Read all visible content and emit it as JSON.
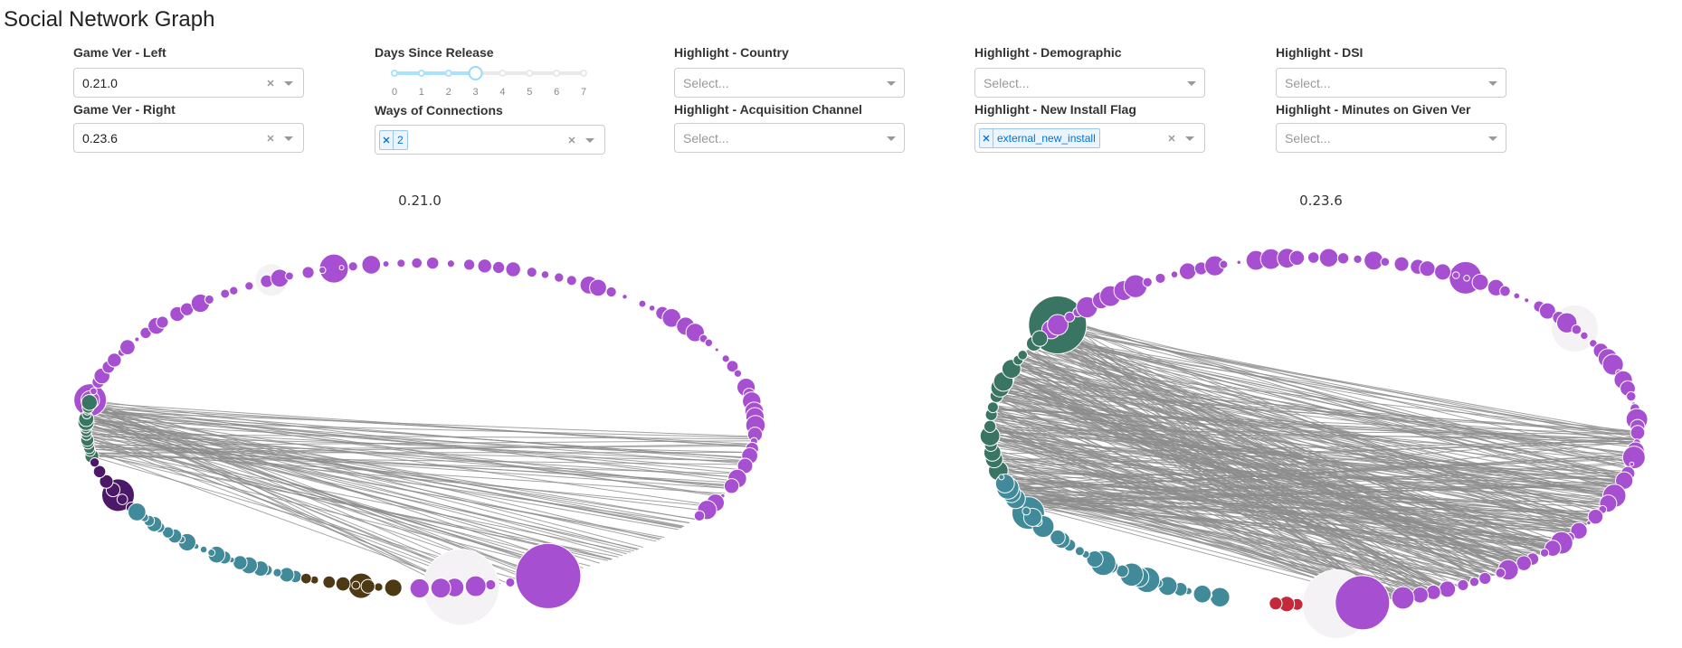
{
  "title": "Social Network Graph",
  "controls": [
    {
      "label": "Game Ver - Left",
      "value": "0.21.0"
    },
    {
      "label": "Game Ver - Right",
      "value": "0.23.6"
    },
    {
      "label": "Days Since Release",
      "ticks": [
        0,
        1,
        2,
        3,
        4,
        5,
        6,
        7
      ],
      "value": 3
    },
    {
      "label": "Ways of Connections",
      "tags": [
        "2"
      ]
    },
    {
      "label": "Highlight - Country",
      "placeholder": "Select..."
    },
    {
      "label": "Highlight - Acquisition Channel",
      "placeholder": "Select..."
    },
    {
      "label": "Highlight - Demographic",
      "placeholder": "Select..."
    },
    {
      "label": "Highlight - New Install Flag",
      "tags": [
        "external_new_install"
      ]
    },
    {
      "label": "Highlight - DSI",
      "placeholder": "Select..."
    },
    {
      "label": "Highlight - Minutes on Given Ver",
      "placeholder": "Select..."
    }
  ],
  "graphs": [
    {
      "title": "0.21.0"
    },
    {
      "title": "0.23.6"
    }
  ]
}
